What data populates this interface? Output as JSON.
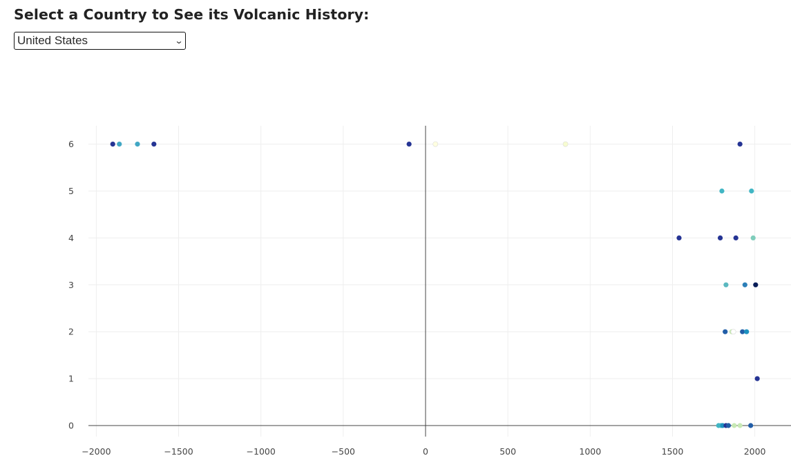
{
  "header": {
    "title": "Select a Country to See its Volcanic History:"
  },
  "country_select": {
    "selected": "United States",
    "icon": "chevron-down-icon"
  },
  "colors": {
    "grid": "#eeeeee",
    "zeroline": "#444444",
    "tick_text": "#444444"
  },
  "chart_data": {
    "type": "scatter",
    "title": "",
    "xlabel": "",
    "ylabel": "",
    "xlim": [
      -2200,
      2220
    ],
    "ylim": [
      -0.35,
      6.4
    ],
    "x_ticks": [
      -2000,
      -1500,
      -1000,
      -500,
      0,
      500,
      1000,
      1500,
      2000
    ],
    "x_tick_labels": [
      "−2000",
      "−1500",
      "−1000",
      "−500",
      "0",
      "500",
      "1000",
      "1500",
      "2000"
    ],
    "y_ticks": [
      0,
      1,
      2,
      3,
      4,
      5,
      6
    ],
    "y_tick_labels": [
      "0",
      "1",
      "2",
      "3",
      "4",
      "5",
      "6"
    ],
    "grid": true,
    "legend": "none",
    "points": [
      {
        "x": -1900,
        "y": 6,
        "color": "#253494"
      },
      {
        "x": -1860,
        "y": 6,
        "color": "#41a7c4"
      },
      {
        "x": -1750,
        "y": 6,
        "color": "#41a7c4"
      },
      {
        "x": -1650,
        "y": 6,
        "color": "#253494"
      },
      {
        "x": -100,
        "y": 6,
        "color": "#253494"
      },
      {
        "x": 60,
        "y": 6,
        "color": "#ffffe0"
      },
      {
        "x": 850,
        "y": 6,
        "color": "#f7fcd0"
      },
      {
        "x": 1910,
        "y": 6,
        "color": "#253494"
      },
      {
        "x": 1800,
        "y": 5,
        "color": "#41b6c4"
      },
      {
        "x": 1980,
        "y": 5,
        "color": "#41b6c4"
      },
      {
        "x": 1540,
        "y": 4,
        "color": "#253494"
      },
      {
        "x": 1790,
        "y": 4,
        "color": "#253494"
      },
      {
        "x": 1885,
        "y": 4,
        "color": "#253494"
      },
      {
        "x": 1990,
        "y": 4,
        "color": "#7fcdbb"
      },
      {
        "x": 1825,
        "y": 3,
        "color": "#5ab8c0"
      },
      {
        "x": 1940,
        "y": 3,
        "color": "#2c7fb8"
      },
      {
        "x": 2005,
        "y": 3,
        "color": "#081d58"
      },
      {
        "x": 1820,
        "y": 2,
        "color": "#225ea8"
      },
      {
        "x": 1860,
        "y": 2,
        "color": "#c7e9b4"
      },
      {
        "x": 1870,
        "y": 2,
        "color": "#ffffff"
      },
      {
        "x": 1925,
        "y": 2,
        "color": "#225ea8"
      },
      {
        "x": 1950,
        "y": 2,
        "color": "#1d91c0"
      },
      {
        "x": 2015,
        "y": 1,
        "color": "#253494"
      },
      {
        "x": 1780,
        "y": 0,
        "color": "#41b6c4"
      },
      {
        "x": 1795,
        "y": 0,
        "color": "#41b6c4"
      },
      {
        "x": 1805,
        "y": 0,
        "color": "#1d91c0"
      },
      {
        "x": 1825,
        "y": 0,
        "color": "#253494"
      },
      {
        "x": 1840,
        "y": 0,
        "color": "#225ea8"
      },
      {
        "x": 1875,
        "y": 0,
        "color": "#c7e9b4"
      },
      {
        "x": 1910,
        "y": 0,
        "color": "#c7e9b4"
      },
      {
        "x": 1975,
        "y": 0,
        "color": "#225ea8"
      }
    ]
  }
}
